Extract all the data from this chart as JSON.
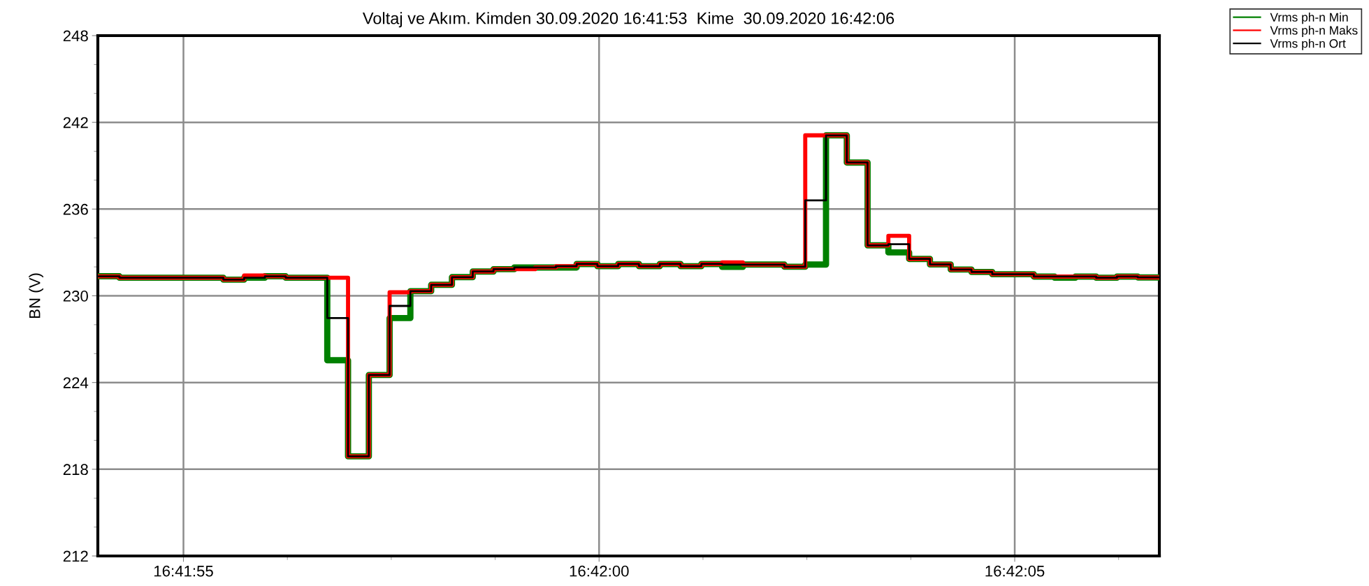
{
  "chart_data": {
    "type": "step",
    "title": "Voltaj ve Akım. Kimden 30.09.2020 16:41:53  Kime  30.09.2020 16:42:06",
    "ylabel": "BN (V)",
    "x": [
      16.6983278,
      16.6983972,
      16.6984667,
      16.6985361,
      16.6986056,
      16.698675,
      16.6987444,
      16.6988139,
      16.6988833,
      16.6989528,
      16.6990222,
      16.6990917,
      16.6991611,
      16.6992306,
      16.6993,
      16.6993694,
      16.6994389,
      16.6995083,
      16.6995778,
      16.6996472,
      16.6997167,
      16.6997861,
      16.6998556,
      16.699925,
      16.6999944,
      16.7000639,
      16.7001333,
      16.7002028,
      16.7002722,
      16.7003417,
      16.7004111,
      16.7004806,
      16.70055,
      16.7006194,
      16.7006889,
      16.7007583,
      16.7008278,
      16.7008972,
      16.7009667,
      16.7010361,
      16.7011056,
      16.701175,
      16.7012444,
      16.7013139,
      16.7013833,
      16.7014528,
      16.7015222,
      16.7015917,
      16.7016611,
      16.7017306,
      16.7018,
      16.7018694
    ],
    "series": [
      {
        "name": "Vrms ph-n Min",
        "color": "#008000",
        "values": [
          231.35,
          231.25,
          231.25,
          231.25,
          231.25,
          231.25,
          231.12,
          231.25,
          231.35,
          231.25,
          231.25,
          225.54,
          218.89,
          224.52,
          228.46,
          230.32,
          230.76,
          231.29,
          231.68,
          231.84,
          231.96,
          231.96,
          231.96,
          232.2,
          232.05,
          232.2,
          232.05,
          232.2,
          232.05,
          232.2,
          232.0,
          232.16,
          232.16,
          232.01,
          232.16,
          241.1,
          239.22,
          233.49,
          233.0,
          232.55,
          232.17,
          231.82,
          231.65,
          231.49,
          231.49,
          231.33,
          231.25,
          231.33,
          231.25,
          231.33,
          231.27,
          231.27
        ]
      },
      {
        "name": "Vrms ph-n Maks",
        "color": "#ff0000",
        "values": [
          231.35,
          231.25,
          231.25,
          231.25,
          231.25,
          231.25,
          231.12,
          231.4,
          231.35,
          231.25,
          231.25,
          231.25,
          218.89,
          224.52,
          230.24,
          230.32,
          230.76,
          231.29,
          231.68,
          231.84,
          231.84,
          231.96,
          232.05,
          232.2,
          232.05,
          232.2,
          232.05,
          232.2,
          232.05,
          232.2,
          232.31,
          232.16,
          232.16,
          232.01,
          241.1,
          241.1,
          239.22,
          233.49,
          234.15,
          232.55,
          232.17,
          231.82,
          231.65,
          231.49,
          231.49,
          231.33,
          231.33,
          231.33,
          231.25,
          231.33,
          231.27,
          231.27
        ]
      },
      {
        "name": "Vrms ph-n Ort",
        "color": "#000000",
        "values": [
          231.35,
          231.25,
          231.25,
          231.25,
          231.25,
          231.25,
          231.12,
          231.25,
          231.35,
          231.25,
          231.25,
          228.46,
          218.89,
          224.52,
          229.3,
          230.32,
          230.76,
          231.29,
          231.68,
          231.84,
          231.96,
          231.96,
          232.05,
          232.2,
          232.05,
          232.2,
          232.05,
          232.2,
          232.05,
          232.2,
          232.16,
          232.16,
          232.16,
          232.01,
          236.6,
          241.1,
          239.22,
          233.49,
          233.57,
          232.55,
          232.17,
          231.82,
          231.65,
          231.49,
          231.49,
          231.33,
          231.33,
          231.33,
          231.25,
          231.33,
          231.27,
          231.27
        ]
      }
    ],
    "xlim": [
      16.698325,
      16.7018722
    ],
    "xticks": [
      {
        "value": 16.6986111,
        "label": "16:41:55"
      },
      {
        "value": 16.6989583,
        "label": null
      },
      {
        "value": 16.6993056,
        "label": null
      },
      {
        "value": 16.6996528,
        "label": null
      },
      {
        "value": 16.7,
        "label": "16:42:00"
      },
      {
        "value": 16.7003472,
        "label": null
      },
      {
        "value": 16.7006944,
        "label": null
      },
      {
        "value": 16.7010417,
        "label": null
      },
      {
        "value": 16.7013889,
        "label": "16:42:05"
      },
      {
        "value": 16.7017361,
        "label": null
      }
    ],
    "ylim": [
      212,
      248
    ],
    "yticks": [
      212,
      {
        "value": 214,
        "label": null
      },
      {
        "value": 216,
        "label": null
      },
      218,
      {
        "value": 220,
        "label": null
      },
      {
        "value": 222,
        "label": null
      },
      224,
      {
        "value": 226,
        "label": null
      },
      {
        "value": 228,
        "label": null
      },
      230,
      {
        "value": 232,
        "label": null
      },
      {
        "value": 234,
        "label": null
      },
      236,
      {
        "value": 238,
        "label": null
      },
      {
        "value": 240,
        "label": null
      },
      242,
      {
        "value": 244,
        "label": null
      },
      {
        "value": 246,
        "label": null
      },
      248
    ],
    "grid": true,
    "legend": "top right",
    "line_style": "solid",
    "marker": "none"
  }
}
